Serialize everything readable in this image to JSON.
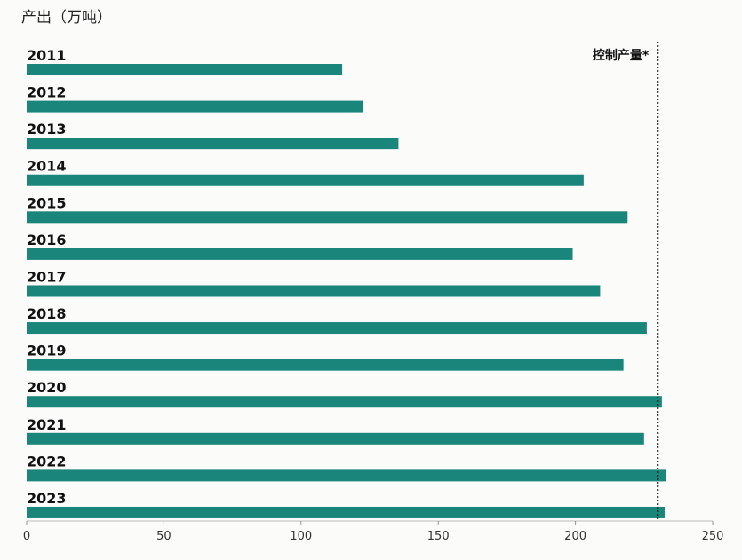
{
  "chart_data": {
    "type": "bar",
    "orientation": "horizontal",
    "unit_label": "产出（万吨）",
    "categories": [
      "2011",
      "2012",
      "2013",
      "2014",
      "2015",
      "2016",
      "2017",
      "2018",
      "2019",
      "2020",
      "2021",
      "2022",
      "2023"
    ],
    "values": [
      115,
      122.5,
      135.5,
      203,
      219,
      199,
      209,
      226,
      217.5,
      231.5,
      225,
      233,
      232.5
    ],
    "xlim": [
      0,
      250
    ],
    "xticks": [
      "0",
      "50",
      "100",
      "150",
      "200",
      "250"
    ],
    "reference_line": {
      "label": "控制产量*",
      "value": 230
    },
    "bar_color": "#1a857a"
  }
}
